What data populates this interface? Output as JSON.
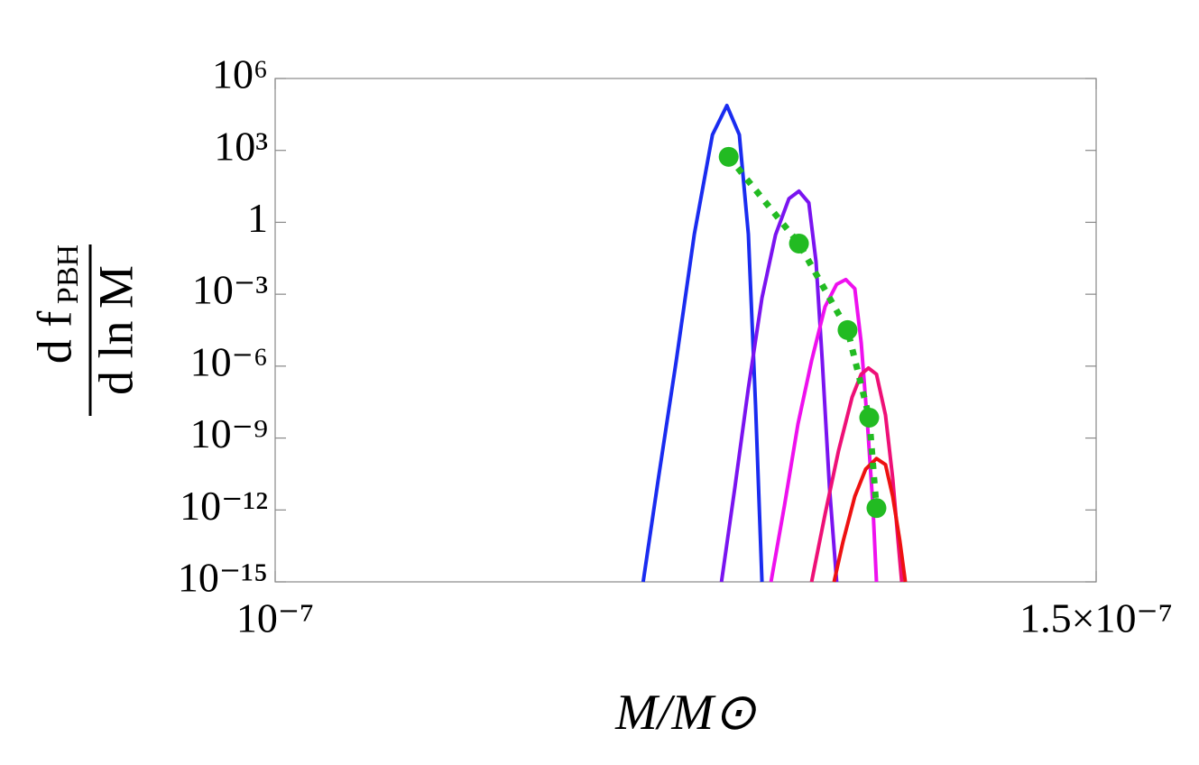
{
  "chart_data": {
    "type": "line",
    "x_label": "M/M⊙",
    "y_label": {
      "numerator": "d f",
      "subscript": "PBH",
      "denominator": "d ln M"
    },
    "log_y": true,
    "xlim": [
      1e-07,
      1.5e-07
    ],
    "xticks": [
      {
        "value": 1e-07,
        "label": "10⁻⁷"
      },
      {
        "value": 1.5e-07,
        "label": "1.5×10⁻⁷"
      }
    ],
    "ylim": [
      1e-15,
      1000000.0
    ],
    "yticks": [
      {
        "value": 1000000.0,
        "label": "10⁶"
      },
      {
        "value": 1000.0,
        "label": "10³"
      },
      1,
      {
        "value": 0.001,
        "label": "10⁻³"
      },
      {
        "value": 1e-06,
        "label": "10⁻⁶"
      },
      {
        "value": 1e-09,
        "label": "10⁻⁹"
      },
      {
        "value": 1e-12,
        "label": "10⁻¹²"
      },
      {
        "value": 1e-15,
        "label": "10⁻¹⁵"
      }
    ],
    "series": [
      {
        "color": "#1a2cf0",
        "x": [
          1.2241e-07,
          1.2334e-07,
          1.2443e-07,
          1.2553e-07,
          1.2663e-07,
          1.2751e-07,
          1.2827e-07,
          1.2882e-07,
          1.2926e-07,
          1.2965e-07
        ],
        "values": [
          1e-15,
          2.1e-11,
          1.7e-06,
          0.32,
          4500.0,
          74000.0,
          4500.0,
          0.32,
          2.2e-08,
          1e-15
        ]
      },
      {
        "color": "#7a14f0",
        "x": [
          1.2718e-07,
          1.28e-07,
          1.2882e-07,
          1.2965e-07,
          1.3047e-07,
          1.3129e-07,
          1.319e-07,
          1.325e-07,
          1.3294e-07,
          1.3332e-07,
          1.3376e-07,
          1.342e-07
        ],
        "values": [
          1e-15,
          8.9e-12,
          1.2e-07,
          0.00071,
          0.3,
          9.7,
          20,
          6.5,
          0.023,
          1.7e-06,
          8.9e-12,
          1e-15
        ]
      },
      {
        "color": "#ee10ee",
        "x": [
          1.302e-07,
          1.3102e-07,
          1.3184e-07,
          1.3267e-07,
          1.3349e-07,
          1.342e-07,
          1.3475e-07,
          1.353e-07,
          1.3569e-07,
          1.3607e-07,
          1.364e-07,
          1.3662e-07
        ],
        "values": [
          1e-15,
          1.6e-12,
          3.9e-09,
          1.7e-06,
          0.0003,
          0.0026,
          0.0041,
          0.0017,
          9.3e-06,
          3.9e-09,
          1.6e-12,
          1e-15
        ]
      },
      {
        "color": "#ee1077",
        "x": [
          1.3267e-07,
          1.3349e-07,
          1.3431e-07,
          1.3514e-07,
          1.3569e-07,
          1.3613e-07,
          1.3662e-07,
          1.3717e-07,
          1.3761e-07,
          1.3794e-07,
          1.3816e-07
        ],
        "values": [
          1e-15,
          6.6e-13,
          2.9e-10,
          5.1e-08,
          4.6e-07,
          8.3e-07,
          4.6e-07,
          9.1e-09,
          2.1e-11,
          4.9e-14,
          1e-15
        ]
      },
      {
        "color": "#ee1111",
        "x": [
          1.3404e-07,
          1.3459e-07,
          1.353e-07,
          1.3596e-07,
          1.3662e-07,
          1.3717e-07,
          1.3761e-07,
          1.3805e-07,
          1.3838e-07
        ],
        "values": [
          1e-15,
          4.9e-14,
          3.7e-12,
          5e-11,
          1.4e-10,
          7.8e-11,
          3.7e-12,
          4.9e-14,
          1e-15
        ]
      },
      {
        "color": "#22bb22",
        "dotted": true,
        "markers": true,
        "x": [
          1.2762e-07,
          1.319e-07,
          1.3486e-07,
          1.3618e-07,
          1.3662e-07
        ],
        "values": [
          540,
          0.13,
          3.2e-05,
          7.1e-09,
          1.2e-12
        ]
      }
    ]
  }
}
